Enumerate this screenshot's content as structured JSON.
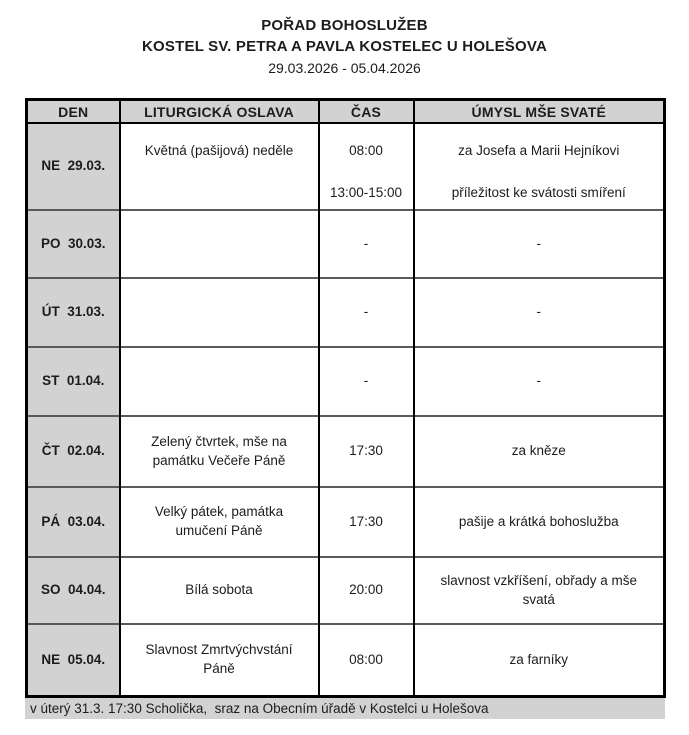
{
  "header": {
    "title": "POŘAD BOHOSLUŽEB",
    "subtitle": "KOSTEL SV. PETRA A PAVLA KOSTELEC U HOLEŠOVA",
    "date_range": "29.03.2026 - 05.04.2026"
  },
  "table": {
    "columns": [
      "DEN",
      "LITURGICKÁ OSLAVA",
      "ČAS",
      "ÚMYSL MŠE SVATÉ"
    ],
    "rows": [
      {
        "den": "NE  29.03.",
        "celebration": "Květná (pašijová) neděle",
        "time": "08:00",
        "intention": "za Josefa a Marii Hejníkovi",
        "time2": "13:00-15:00",
        "intention2": "příležitost ke svátosti smíření"
      },
      {
        "den": "PO  30.03.",
        "celebration": "",
        "time": "-",
        "intention": "-"
      },
      {
        "den": "ÚT  31.03.",
        "celebration": "",
        "time": "-",
        "intention": "-"
      },
      {
        "den": "ST  01.04.",
        "celebration": "",
        "time": "-",
        "intention": "-"
      },
      {
        "den": "ČT  02.04.",
        "celebration": "Zelený čtvrtek, mše na památku Večeře Páně",
        "time": "17:30",
        "intention": "za kněze"
      },
      {
        "den": "PÁ  03.04.",
        "celebration": "Velký pátek, památka umučení Páně",
        "time": "17:30",
        "intention": "pašije a krátká bohoslužba"
      },
      {
        "den": "SO  04.04.",
        "celebration": "Bílá sobota",
        "time": "20:00",
        "intention": "slavnost vzkříšení, obřady a mše svatá"
      },
      {
        "den": "NE  05.04.",
        "celebration": "Slavnost Zmrtvýchvstání Páně",
        "time": "08:00",
        "intention": "za farníky"
      }
    ]
  },
  "footer": {
    "note": "v úterý 31.3. 17:30 Scholička,  sraz na Obecním úřadě v Kostelci u Holešova"
  },
  "colors": {
    "cell_gray": "#d2d2d2",
    "border_black": "#000000",
    "row_divider": "#5a5a5a"
  }
}
